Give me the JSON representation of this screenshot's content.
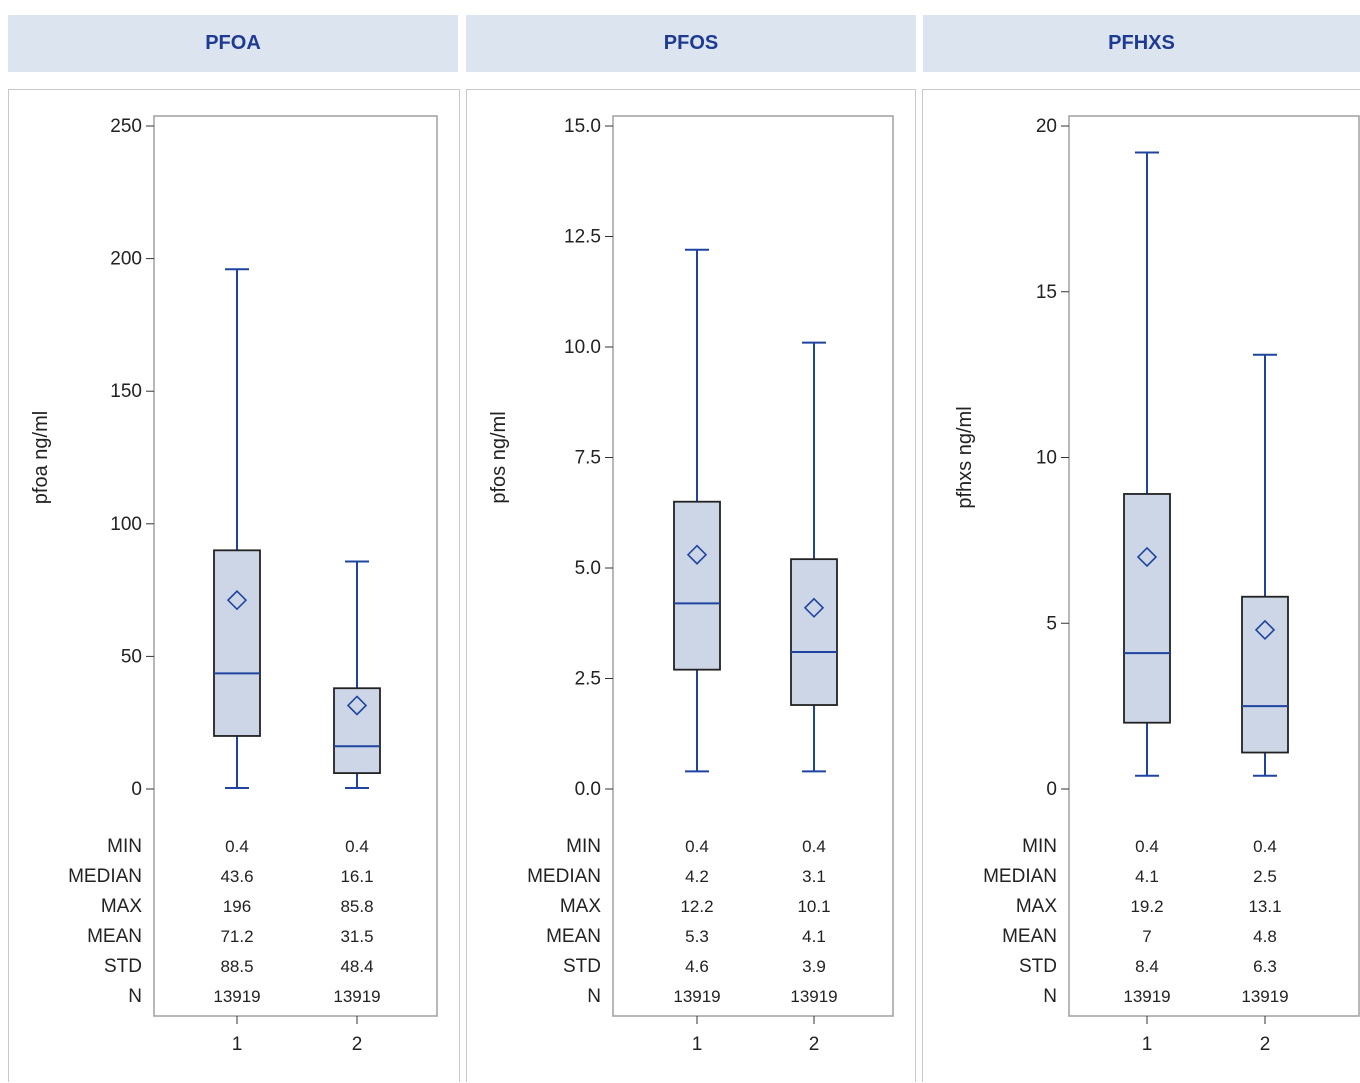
{
  "colors": {
    "header_bg": "#dbe4ef",
    "header_text": "#1f3a93",
    "box_fill": "#ccd6e6",
    "box_stroke": "#222222",
    "whisker": "#1f44a0",
    "frame": "#a0a0a0"
  },
  "stat_labels": [
    "MIN",
    "MEDIAN",
    "MAX",
    "MEAN",
    "STD",
    "N"
  ],
  "chart_data": [
    {
      "type": "box",
      "title": "PFOA",
      "ylabel": "pfoa ng/ml",
      "ylim": [
        0,
        250
      ],
      "yticks": [
        0,
        50,
        100,
        150,
        200,
        250
      ],
      "ytick_labels": [
        "0",
        "50",
        "100",
        "150",
        "200",
        "250"
      ],
      "categories": [
        "1",
        "2"
      ],
      "boxes": [
        {
          "min": 0.4,
          "q1": 20,
          "median": 43.6,
          "q3": 90,
          "max": 196,
          "mean": 71.2
        },
        {
          "min": 0.4,
          "q1": 6,
          "median": 16.1,
          "q3": 38,
          "max": 85.8,
          "mean": 31.5
        }
      ],
      "stats": [
        [
          "0.4",
          "0.4"
        ],
        [
          "43.6",
          "16.1"
        ],
        [
          "196",
          "85.8"
        ],
        [
          "71.2",
          "31.5"
        ],
        [
          "88.5",
          "48.4"
        ],
        [
          "13919",
          "13919"
        ]
      ]
    },
    {
      "type": "box",
      "title": "PFOS",
      "ylabel": "pfos ng/ml",
      "ylim": [
        0,
        15
      ],
      "yticks": [
        0,
        2.5,
        5,
        7.5,
        10,
        12.5,
        15
      ],
      "ytick_labels": [
        "0.0",
        "2.5",
        "5.0",
        "7.5",
        "10.0",
        "12.5",
        "15.0"
      ],
      "categories": [
        "1",
        "2"
      ],
      "boxes": [
        {
          "min": 0.4,
          "q1": 2.7,
          "median": 4.2,
          "q3": 6.5,
          "max": 12.2,
          "mean": 5.3
        },
        {
          "min": 0.4,
          "q1": 1.9,
          "median": 3.1,
          "q3": 5.2,
          "max": 10.1,
          "mean": 4.1
        }
      ],
      "stats": [
        [
          "0.4",
          "0.4"
        ],
        [
          "4.2",
          "3.1"
        ],
        [
          "12.2",
          "10.1"
        ],
        [
          "5.3",
          "4.1"
        ],
        [
          "4.6",
          "3.9"
        ],
        [
          "13919",
          "13919"
        ]
      ]
    },
    {
      "type": "box",
      "title": "PFHXS",
      "ylabel": "pfhxs ng/ml",
      "ylim": [
        0,
        20
      ],
      "yticks": [
        0,
        5,
        10,
        15,
        20
      ],
      "ytick_labels": [
        "0",
        "5",
        "10",
        "15",
        "20"
      ],
      "categories": [
        "1",
        "2"
      ],
      "boxes": [
        {
          "min": 0.4,
          "q1": 2.0,
          "median": 4.1,
          "q3": 8.9,
          "max": 19.2,
          "mean": 7.0
        },
        {
          "min": 0.4,
          "q1": 1.1,
          "median": 2.5,
          "q3": 5.8,
          "max": 13.1,
          "mean": 4.8
        }
      ],
      "stats": [
        [
          "0.4",
          "0.4"
        ],
        [
          "4.1",
          "2.5"
        ],
        [
          "19.2",
          "13.1"
        ],
        [
          "7",
          "4.8"
        ],
        [
          "8.4",
          "6.3"
        ],
        [
          "13919",
          "13919"
        ]
      ]
    }
  ]
}
